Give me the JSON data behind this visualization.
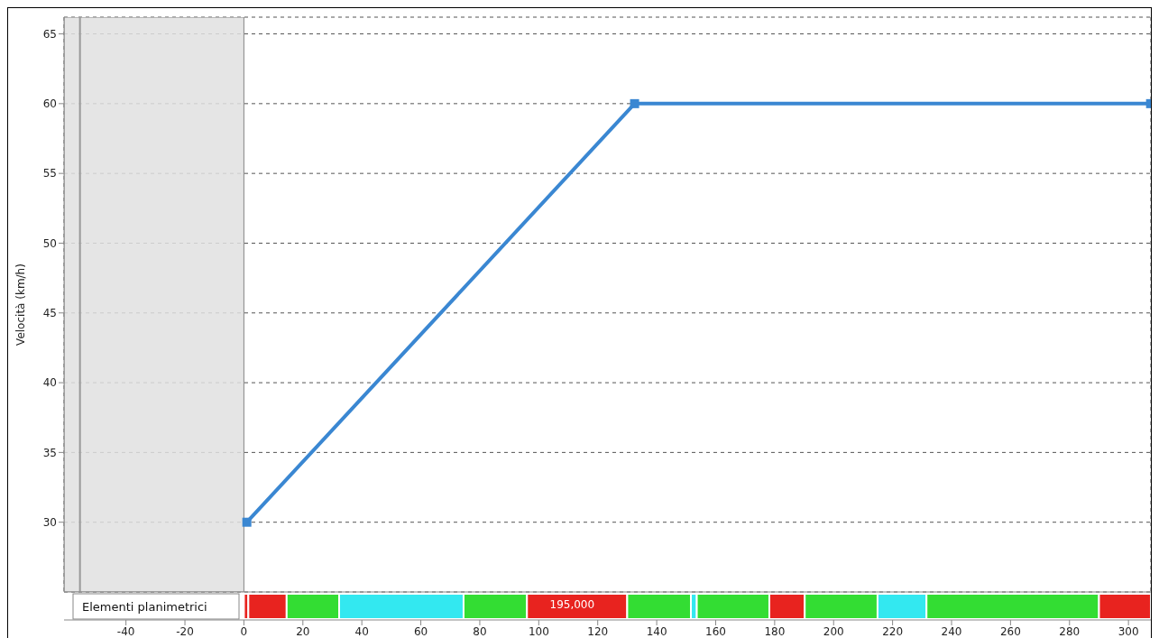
{
  "chart_data": [
    {
      "type": "line",
      "ylabel": "Velocità (km/h)",
      "x": [
        1,
        132.5,
        307.5
      ],
      "series": [
        {
          "color": "#3a87d2",
          "values": [
            30,
            60,
            60
          ]
        }
      ],
      "marker": "square",
      "line_style": "solid",
      "xlim": [
        -61,
        307.6
      ],
      "xticks": [
        -40,
        -20,
        0,
        20,
        40,
        60,
        80,
        100,
        120,
        140,
        160,
        180,
        200,
        220,
        240,
        260,
        280,
        300
      ],
      "ylim": [
        25,
        66.2
      ],
      "yticks": [
        30,
        35,
        40,
        45,
        50,
        55,
        60,
        65
      ],
      "grid": true,
      "legend": false,
      "tick_labels": "y",
      "bands": [
        {
          "axis": "x",
          "from": -61,
          "to": 0,
          "color": "#e0e0e0"
        }
      ],
      "ref_lines": [
        {
          "axis": "x",
          "value": -55.6,
          "color": "#999999"
        }
      ]
    },
    {
      "type": "bar",
      "orientation": "horizontal",
      "stacked": true,
      "categories": [
        "Elementi planimetrici"
      ],
      "series": [
        {
          "color": "#e8231f",
          "values": [
            1.5
          ]
        },
        {
          "color": "#e8231f",
          "values": [
            13
          ]
        },
        {
          "color": "#33dd33",
          "values": [
            17.8
          ]
        },
        {
          "color": "#33e8f0",
          "values": [
            42.2
          ]
        },
        {
          "color": "#33dd33",
          "values": [
            21.5
          ]
        },
        {
          "color": "#e8231f",
          "values": [
            34
          ]
        },
        {
          "color": "#33dd33",
          "values": [
            21.6
          ]
        },
        {
          "color": "#33e8f0",
          "values": [
            2
          ]
        },
        {
          "color": "#33dd33",
          "values": [
            24.6
          ]
        },
        {
          "color": "#e8231f",
          "values": [
            12
          ]
        },
        {
          "color": "#33dd33",
          "values": [
            24.7
          ]
        },
        {
          "color": "#33e8f0",
          "values": [
            16.6
          ]
        },
        {
          "color": "#33dd33",
          "values": [
            58.5
          ]
        },
        {
          "color": "#e8231f",
          "values": [
            17.6
          ]
        }
      ],
      "xlim": [
        -61,
        307.6
      ],
      "xticks": [
        -40,
        -20,
        0,
        20,
        40,
        60,
        80,
        100,
        120,
        140,
        160,
        180,
        200,
        220,
        240,
        260,
        280,
        300
      ],
      "legend": false,
      "annotations": [
        "195,000"
      ]
    }
  ]
}
